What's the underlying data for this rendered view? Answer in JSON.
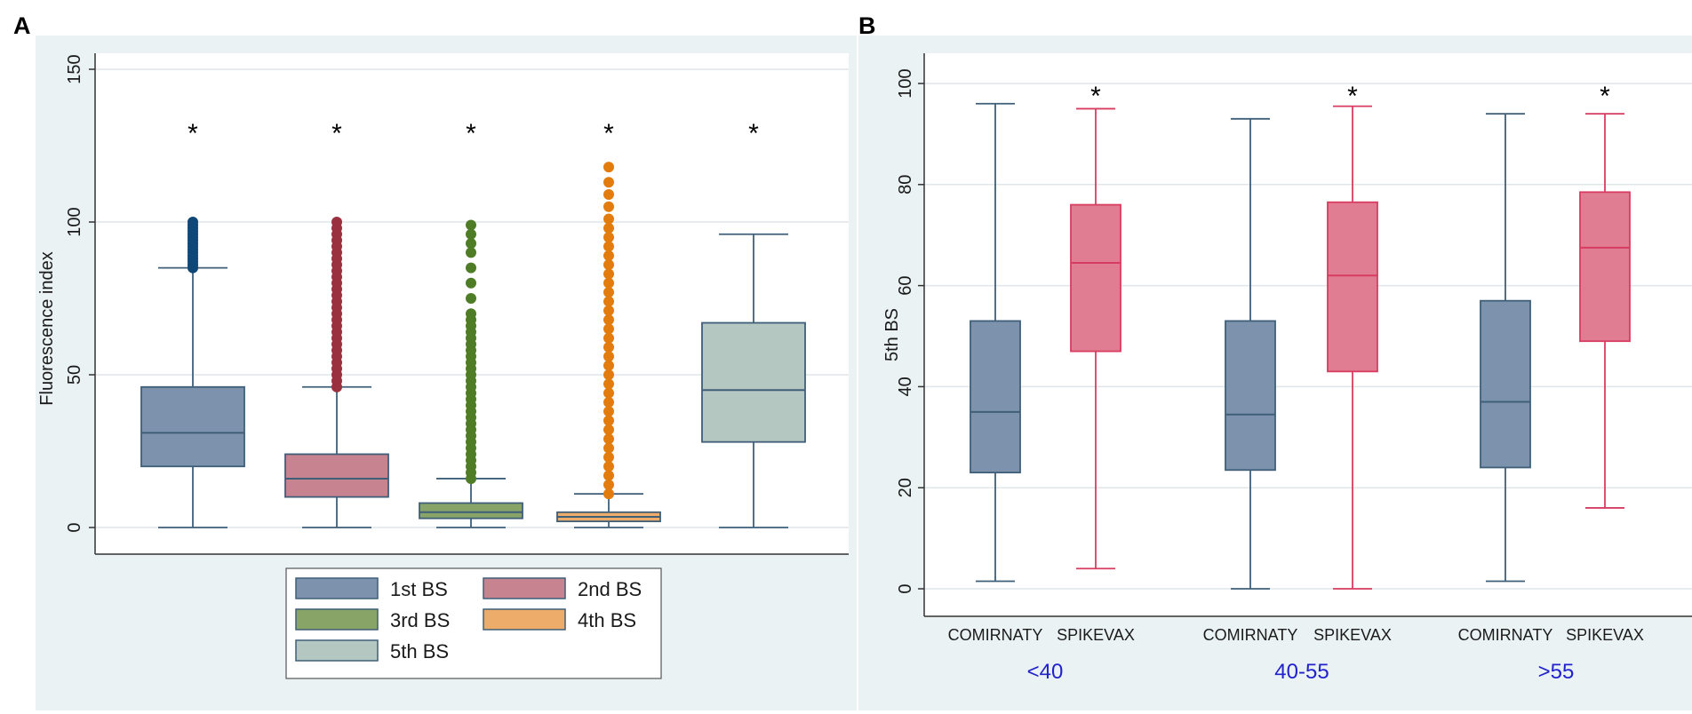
{
  "chart_data": [
    {
      "panel": "A",
      "type": "box",
      "title": "",
      "xlabel": "",
      "ylabel": "Fluorescence index",
      "ylim": [
        0,
        150
      ],
      "yticks": [
        0,
        50,
        100,
        150
      ],
      "grid": true,
      "significance_marker": "*",
      "legend_placement": "bottom",
      "boxes": [
        {
          "name": "1st BS",
          "color": "#7d93ad",
          "whisker_low": 0,
          "q1": 20,
          "median": 31,
          "q3": 46,
          "whisker_high": 85,
          "outliers": [
            85,
            86,
            87,
            88,
            89,
            90,
            91,
            92,
            93,
            94,
            95,
            96,
            97,
            98,
            99,
            100
          ]
        },
        {
          "name": "2nd BS",
          "color": "#c7838f",
          "whisker_low": 0,
          "q1": 10,
          "median": 16,
          "q3": 24,
          "whisker_high": 46,
          "outliers": [
            46,
            48,
            50,
            52,
            54,
            56,
            58,
            60,
            62,
            64,
            66,
            68,
            70,
            72,
            74,
            76,
            78,
            80,
            82,
            84,
            86,
            88,
            90,
            92,
            94,
            96,
            98,
            100
          ]
        },
        {
          "name": "3rd BS",
          "color": "#89a467",
          "whisker_low": 0,
          "q1": 3,
          "median": 5,
          "q3": 8,
          "whisker_high": 16,
          "outliers": [
            16,
            18,
            20,
            22,
            24,
            26,
            28,
            30,
            32,
            34,
            36,
            38,
            40,
            42,
            44,
            46,
            48,
            50,
            52,
            54,
            56,
            58,
            60,
            62,
            64,
            66,
            68,
            70,
            75,
            80,
            85,
            90,
            93,
            96,
            99
          ]
        },
        {
          "name": "4th BS",
          "color": "#eeac6a",
          "whisker_low": 0,
          "q1": 2,
          "median": 3.5,
          "q3": 5,
          "whisker_high": 11,
          "outliers": [
            11,
            14,
            17,
            20,
            23,
            26,
            29,
            32,
            35,
            38,
            41,
            44,
            47,
            50,
            53,
            56,
            59,
            62,
            65,
            68,
            71,
            74,
            77,
            80,
            83,
            86,
            89,
            92,
            95,
            98,
            101,
            105,
            109,
            113,
            118
          ]
        },
        {
          "name": "5th BS",
          "color": "#b5c7c1",
          "whisker_low": 0,
          "q1": 28,
          "median": 45,
          "q3": 67,
          "whisker_high": 96,
          "outliers": []
        }
      ]
    },
    {
      "panel": "B",
      "type": "box",
      "title": "",
      "xlabel": "",
      "ylabel": "5th BS",
      "ylim": [
        0,
        100
      ],
      "yticks": [
        0,
        20,
        40,
        60,
        80,
        100
      ],
      "grid": true,
      "significance_marker": "*",
      "groups": [
        "<40",
        "40-55",
        ">55"
      ],
      "categories": [
        "COMIRNATY",
        "SPIKEVAX"
      ],
      "boxes": [
        {
          "group": "<40",
          "category": "COMIRNATY",
          "whisker_low": 1.5,
          "q1": 23,
          "median": 35,
          "q3": 53,
          "whisker_high": 96,
          "significant": false
        },
        {
          "group": "<40",
          "category": "SPIKEVAX",
          "whisker_low": 4,
          "q1": 47,
          "median": 64.5,
          "q3": 76,
          "whisker_high": 95,
          "significant": true
        },
        {
          "group": "40-55",
          "category": "COMIRNATY",
          "whisker_low": 0,
          "q1": 23.5,
          "median": 34.5,
          "q3": 53,
          "whisker_high": 93,
          "significant": false
        },
        {
          "group": "40-55",
          "category": "SPIKEVAX",
          "whisker_low": 0,
          "q1": 43,
          "median": 62,
          "q3": 76.5,
          "whisker_high": 95.5,
          "significant": true
        },
        {
          "group": ">55",
          "category": "COMIRNATY",
          "whisker_low": 1.5,
          "q1": 24,
          "median": 37,
          "q3": 57,
          "whisker_high": 94,
          "significant": false
        },
        {
          "group": ">55",
          "category": "SPIKEVAX",
          "whisker_low": 16,
          "q1": 49,
          "median": 67.5,
          "q3": 78.5,
          "whisker_high": 94,
          "significant": true
        }
      ],
      "colors": {
        "COMIRNATY": "#7d93ad",
        "SPIKEVAX": "#e07d92"
      }
    }
  ],
  "theme": {
    "panel_bg": "#eaf2f3",
    "grid_color": "#dfe7ea",
    "box_edge_A": "#3f5f78",
    "box_edge_B_comirnaty": "#3f5f78",
    "box_edge_B_spikevax": "#d83c60",
    "outlier_colors": [
      "#0f4777",
      "#99313f",
      "#4f7d25",
      "#e37c0e"
    ]
  }
}
